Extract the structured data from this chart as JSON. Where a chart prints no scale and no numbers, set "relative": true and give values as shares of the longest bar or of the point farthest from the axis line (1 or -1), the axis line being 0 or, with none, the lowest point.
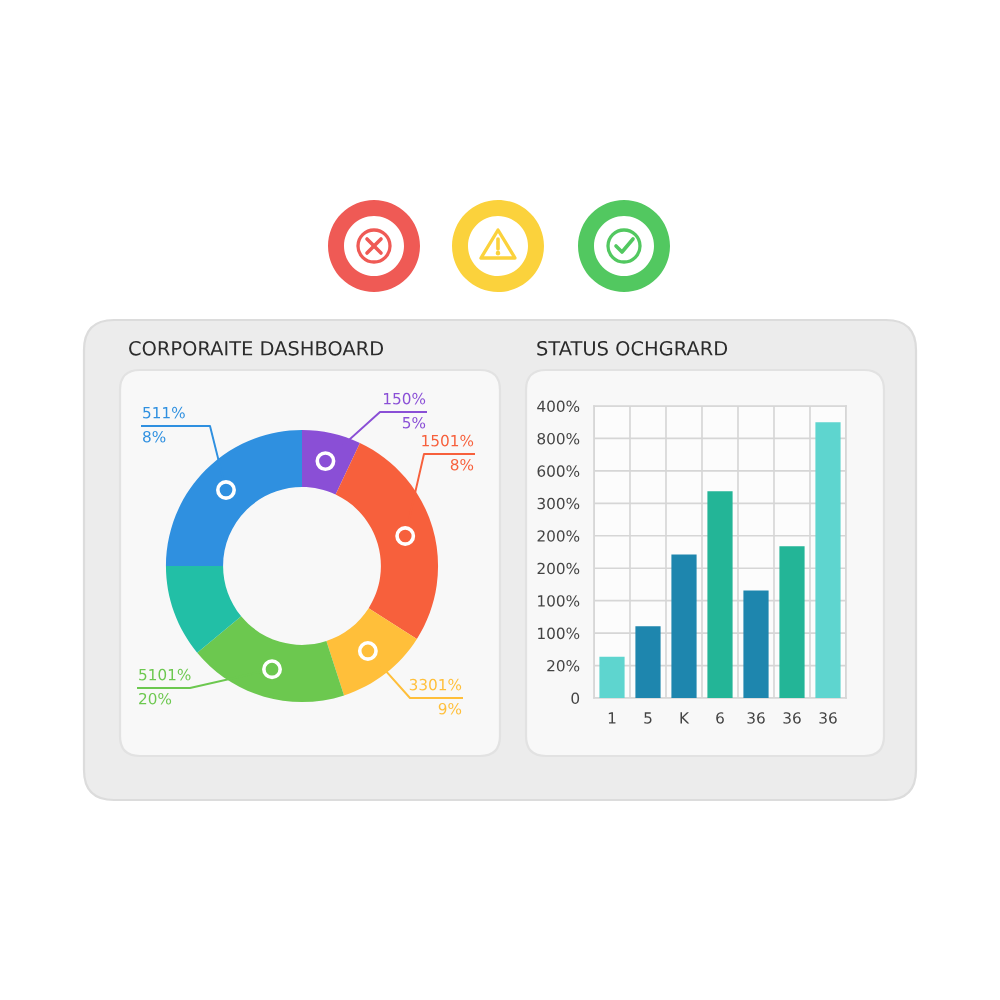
{
  "chart_data": [
    {
      "type": "donut",
      "title": "CORPORAITE DASHBOARD",
      "categories": [
        null,
        null,
        null,
        null,
        null,
        null
      ],
      "values": [
        7,
        27,
        11,
        19,
        11,
        25
      ],
      "colors": [
        "#8a4fd6",
        "#f7603c",
        "#ffbf3a",
        "#6cc84f",
        "#22bfa6",
        "#2f90e0"
      ],
      "annotations": [
        "150%\n5%",
        "1501%\n8%",
        "3301%\n9%",
        "5101%\n20%",
        "511%\n8%"
      ]
    },
    {
      "type": "bar",
      "title": "STATUS OCHGRARD",
      "relative": true,
      "categories": [
        "1",
        "5",
        "K",
        "6",
        "36",
        "36",
        "36"
      ],
      "values": [
        0.15,
        0.26,
        0.52,
        0.75,
        0.39,
        0.55,
        1
      ],
      "colors": [
        "#5ed5cf",
        "#1e86ae",
        "#1e86ae",
        "#23b597",
        "#1e86ae",
        "#23b597",
        "#5ed5cf"
      ],
      "annotations": [
        "400%",
        "800%",
        "600%",
        "300%",
        "200%",
        "200%",
        "100%",
        "100%",
        "20%",
        "0"
      ],
      "grid": true
    }
  ]
}
